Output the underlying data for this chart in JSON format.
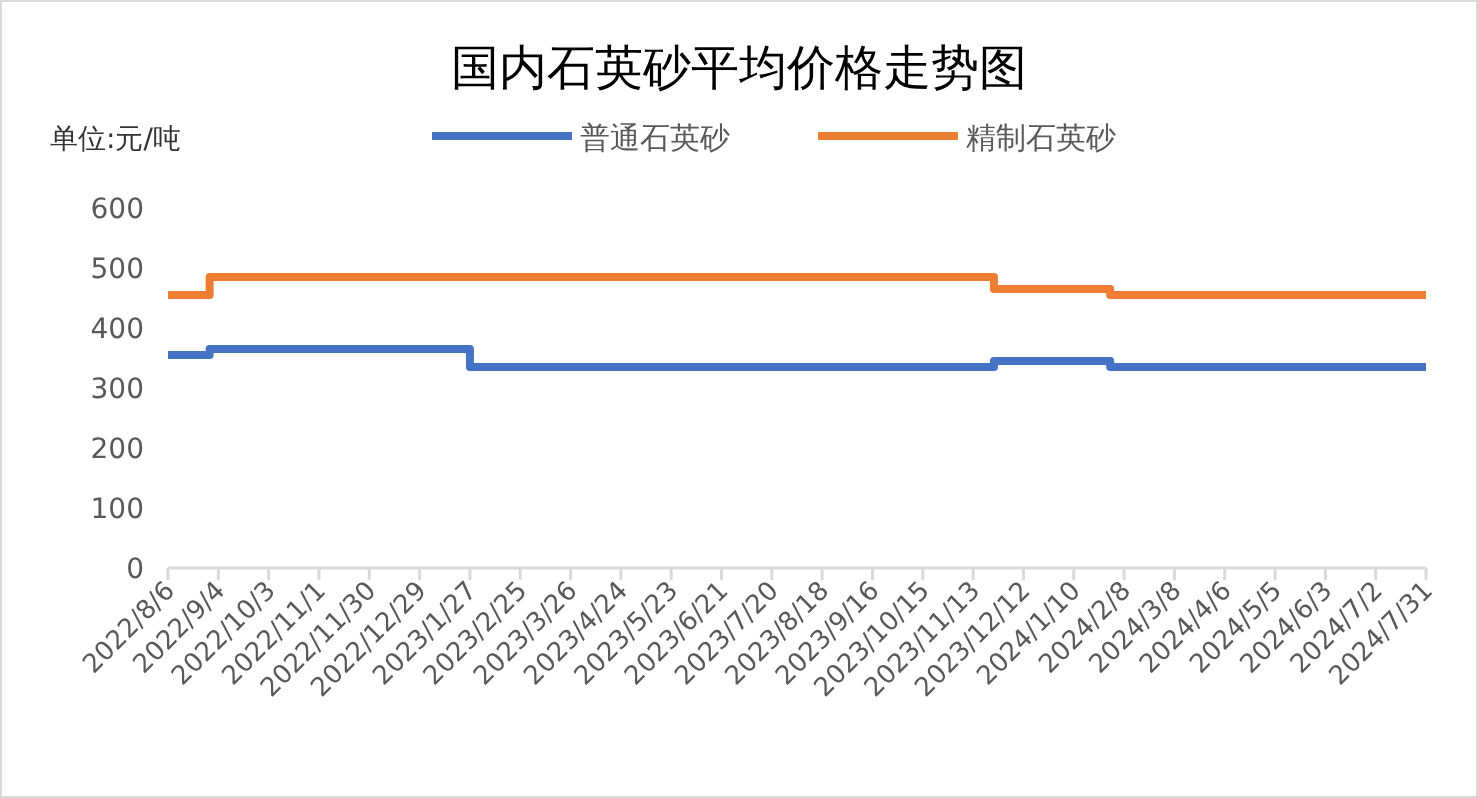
{
  "chart_data": {
    "type": "step",
    "title": "国内石英砂平均价格走势图",
    "ylabel": "单位:元/吨",
    "xlim": [
      "2022-08-06",
      "2024-07-31"
    ],
    "xticks": [
      {
        "value": "2022-08-06",
        "label": "2022/8/6"
      },
      {
        "value": "2022-09-04",
        "label": "2022/9/4"
      },
      {
        "value": "2022-10-03",
        "label": "2022/10/3"
      },
      {
        "value": "2022-11-01",
        "label": "2022/11/1"
      },
      {
        "value": "2022-11-30",
        "label": "2022/11/30"
      },
      {
        "value": "2022-12-29",
        "label": "2022/12/29"
      },
      {
        "value": "2023-01-27",
        "label": "2023/1/27"
      },
      {
        "value": "2023-02-25",
        "label": "2023/2/25"
      },
      {
        "value": "2023-03-26",
        "label": "2023/3/26"
      },
      {
        "value": "2023-04-24",
        "label": "2023/4/24"
      },
      {
        "value": "2023-05-23",
        "label": "2023/5/23"
      },
      {
        "value": "2023-06-21",
        "label": "2023/6/21"
      },
      {
        "value": "2023-07-20",
        "label": "2023/7/20"
      },
      {
        "value": "2023-08-18",
        "label": "2023/8/18"
      },
      {
        "value": "2023-09-16",
        "label": "2023/9/16"
      },
      {
        "value": "2023-10-15",
        "label": "2023/10/15"
      },
      {
        "value": "2023-11-13",
        "label": "2023/11/13"
      },
      {
        "value": "2023-12-12",
        "label": "2023/12/12"
      },
      {
        "value": "2024-01-10",
        "label": "2024/1/10"
      },
      {
        "value": "2024-02-08",
        "label": "2024/2/8"
      },
      {
        "value": "2024-03-08",
        "label": "2024/3/8"
      },
      {
        "value": "2024-04-06",
        "label": "2024/4/6"
      },
      {
        "value": "2024-05-05",
        "label": "2024/5/5"
      },
      {
        "value": "2024-06-03",
        "label": "2024/6/3"
      },
      {
        "value": "2024-07-02",
        "label": "2024/7/2"
      },
      {
        "value": "2024-07-31",
        "label": "2024/7/31"
      }
    ],
    "ylim": [
      0,
      600
    ],
    "yticks": [
      0,
      100,
      200,
      300,
      400,
      500,
      600
    ],
    "grid": false,
    "legend": "top",
    "series": [
      {
        "name": "普通石英砂",
        "color": "#4472c4",
        "x": [
          "2022-08-06",
          "2022-08-30",
          "2023-01-27",
          "2023-11-25",
          "2024-01-31",
          "2024-07-31"
        ],
        "values": [
          355,
          365,
          335,
          345,
          335,
          335
        ]
      },
      {
        "name": "精制石英砂",
        "color": "#ed7d31",
        "x": [
          "2022-08-06",
          "2022-08-30",
          "2023-11-25",
          "2024-01-31",
          "2024-07-31"
        ],
        "values": [
          455,
          485,
          465,
          455,
          455
        ]
      }
    ]
  }
}
